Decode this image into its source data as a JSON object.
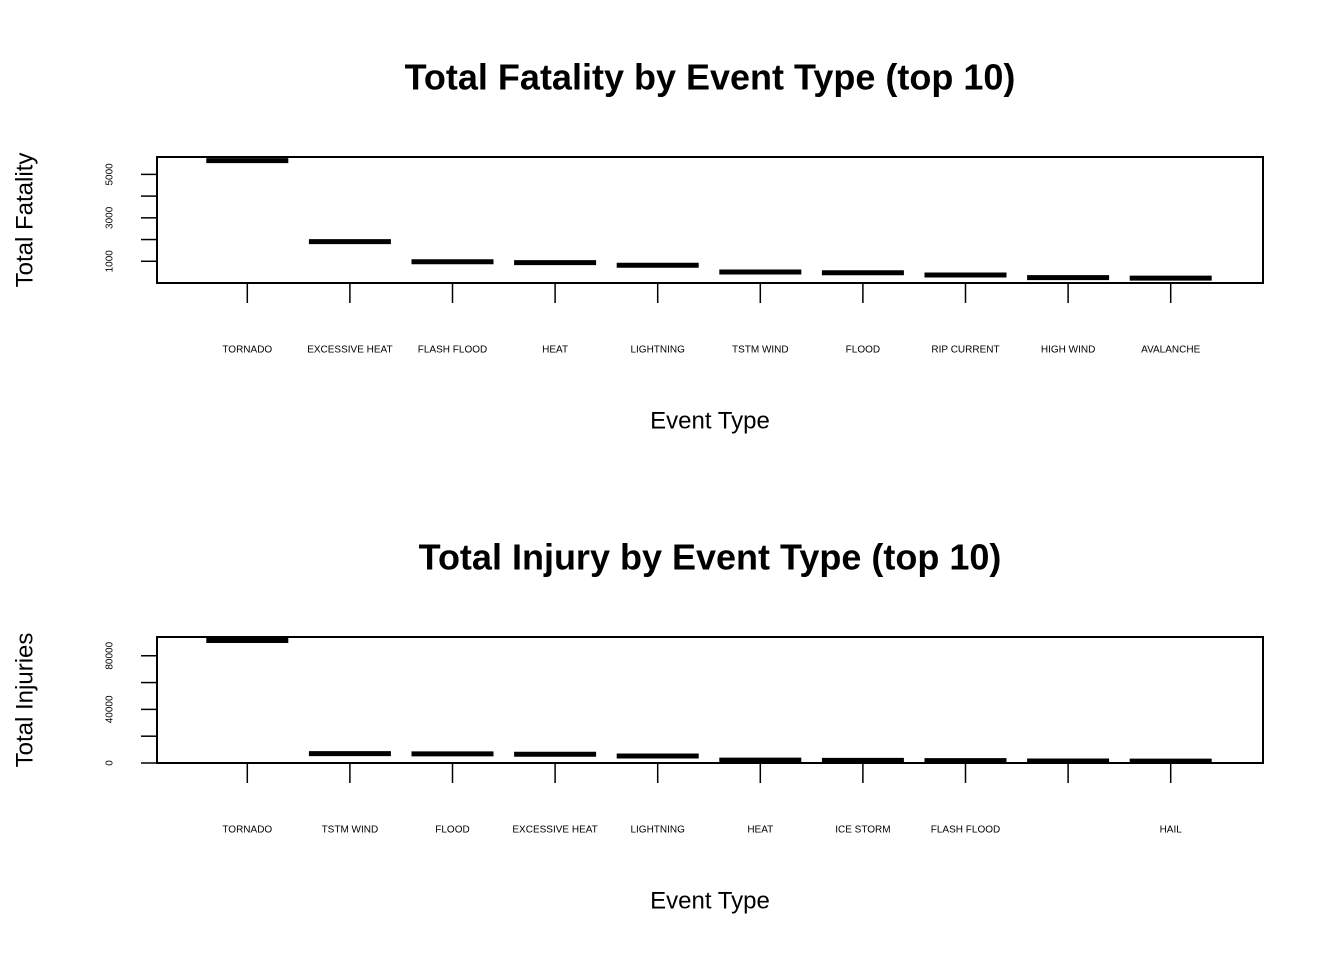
{
  "chart_data": [
    {
      "type": "bar",
      "title": "Total Fatality by Event Type (top 10)",
      "xlabel": "Event Type",
      "ylabel": "Total Fatality",
      "categories": [
        "TORNADO",
        "EXCESSIVE HEAT",
        "FLASH FLOOD",
        "HEAT",
        "LIGHTNING",
        "TSTM WIND",
        "FLOOD",
        "RIP CURRENT",
        "HIGH WIND",
        "AVALANCHE"
      ],
      "values": [
        5633,
        1903,
        978,
        937,
        816,
        504,
        470,
        368,
        248,
        224
      ],
      "ylim": [
        0,
        5800
      ],
      "yticks": [
        1000,
        2000,
        3000,
        4000,
        5000
      ],
      "ytick_labels": [
        "1000",
        "",
        "3000",
        "",
        "5000"
      ],
      "grid": false,
      "legend": "none"
    },
    {
      "type": "bar",
      "title": "Total Injury by Event Type (top 10)",
      "xlabel": "Event Type",
      "ylabel": "Total Injuries",
      "categories": [
        "TORNADO",
        "TSTM WIND",
        "FLOOD",
        "EXCESSIVE HEAT",
        "LIGHTNING",
        "HEAT",
        "ICE STORM",
        "FLASH FLOOD",
        "",
        "HAIL"
      ],
      "values": [
        91346,
        6957,
        6789,
        6525,
        5230,
        2100,
        1975,
        1777,
        1488,
        1361
      ],
      "ylim": [
        0,
        94000
      ],
      "yticks": [
        0,
        20000,
        40000,
        60000,
        80000
      ],
      "ytick_labels": [
        "0",
        "",
        "40000",
        "",
        "80000"
      ],
      "grid": false,
      "legend": "none"
    }
  ]
}
